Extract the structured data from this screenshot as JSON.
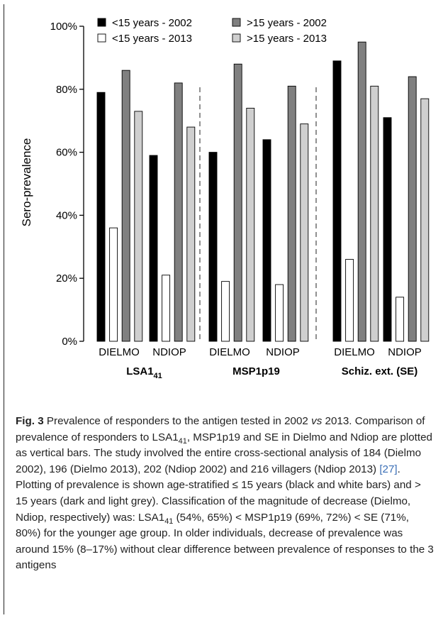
{
  "chart_data": {
    "type": "bar",
    "ylabel": "Sero-prevalence",
    "ylim": [
      0,
      100
    ],
    "yticks": [
      "0%",
      "20%",
      "40%",
      "60%",
      "80%",
      "100%"
    ],
    "ytick_values": [
      0,
      20,
      40,
      60,
      80,
      100
    ],
    "groups": [
      {
        "title_main": "LSA1",
        "title_sub": "41",
        "sites": [
          "DIELMO",
          "NDIOP"
        ]
      },
      {
        "title_main": "MSP1p19",
        "title_sub": "",
        "sites": [
          "DIELMO",
          "NDIOP"
        ]
      },
      {
        "title_main": "Schiz. ext. (SE)",
        "title_sub": "",
        "sites": [
          "DIELMO",
          "NDIOP"
        ]
      }
    ],
    "series": [
      {
        "name": "<15 years - 2002",
        "color": "#000000",
        "values": [
          79,
          59,
          60,
          64,
          89,
          71
        ]
      },
      {
        "name": "<15 years - 2013",
        "color": "#ffffff",
        "values": [
          36,
          21,
          19,
          18,
          26,
          14
        ]
      },
      {
        "name": ">15 years - 2002",
        "color": "#808080",
        "values": [
          86,
          82,
          88,
          81,
          95,
          84
        ]
      },
      {
        "name": ">15 years - 2013",
        "color": "#cfcfcf",
        "values": [
          73,
          68,
          74,
          69,
          81,
          77
        ]
      }
    ],
    "legend_position": "top"
  },
  "caption": {
    "fig_label": "Fig. 3",
    "text_1": " Prevalence of responders to the antigen tested in 2002 ",
    "vs": "vs",
    "text_2": " 2013. Comparison of prevalence of responders to LSA1",
    "sub_1": "41",
    "text_3": ", MSP1p19 and SE in Dielmo and Ndiop are plotted as vertical bars. The study involved the entire cross-sectional analysis of 184 (Dielmo 2002), 196 (Dielmo 2013), 202 (Ndiop 2002) and 216 villagers (Ndiop 2013) ",
    "ref": "[27]",
    "text_4": ". Plotting of prevalence is shown age-stratified ≤ 15 years (black and white bars) and > 15 years (dark and light grey). Classification of the magnitude of decrease (Dielmo, Ndiop, respectively) was: LSA1",
    "sub_2": "41",
    "text_5": " (54%, 65%) < MSP1p19 (69%, 72%) < SE (71%, 80%) for the younger age group. In older individuals, decrease of prevalence was around 15% (8–17%) without clear difference between prevalence of responses to the 3 antigens"
  }
}
